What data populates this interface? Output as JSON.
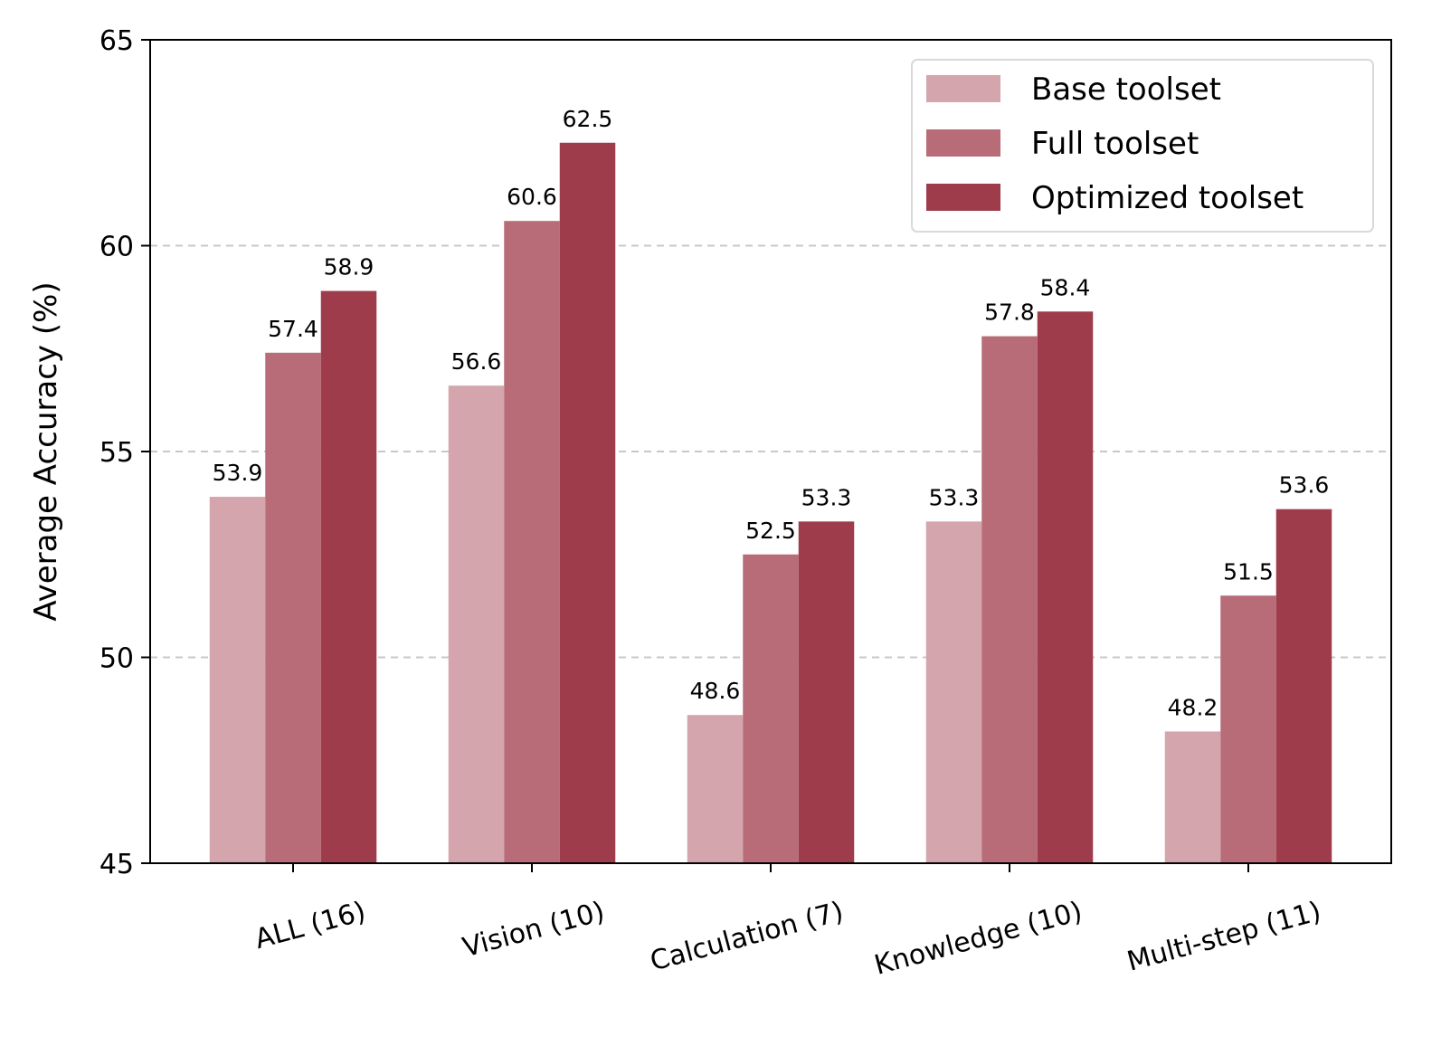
{
  "chart_data": {
    "type": "bar",
    "title": "",
    "xlabel": "",
    "ylabel": "Average Accuracy (%)",
    "ylim": [
      45,
      65
    ],
    "yticks": [
      45,
      50,
      55,
      60,
      65
    ],
    "grid": true,
    "legend_position": "top-right",
    "categories": [
      "ALL (16)",
      "Vision (10)",
      "Calculation (7)",
      "Knowledge (10)",
      "Multi-step (11)"
    ],
    "series": [
      {
        "name": "Base toolset",
        "color": "#d4a5ad",
        "values": [
          53.9,
          56.6,
          48.6,
          53.3,
          48.2
        ],
        "labels": [
          "53.9",
          "56.6",
          "48.6",
          "53.3",
          "48.2"
        ]
      },
      {
        "name": "Full toolset",
        "color": "#b86c78",
        "values": [
          57.4,
          60.6,
          52.5,
          57.8,
          51.5
        ],
        "labels": [
          "57.4",
          "60.6",
          "52.5",
          "57.8",
          "51.5"
        ]
      },
      {
        "name": "Optimized toolset",
        "color": "#9e3c4b",
        "values": [
          58.9,
          62.5,
          53.3,
          58.4,
          53.6
        ],
        "labels": [
          "58.9",
          "62.5",
          "53.3",
          "58.4",
          "53.6"
        ]
      }
    ]
  }
}
